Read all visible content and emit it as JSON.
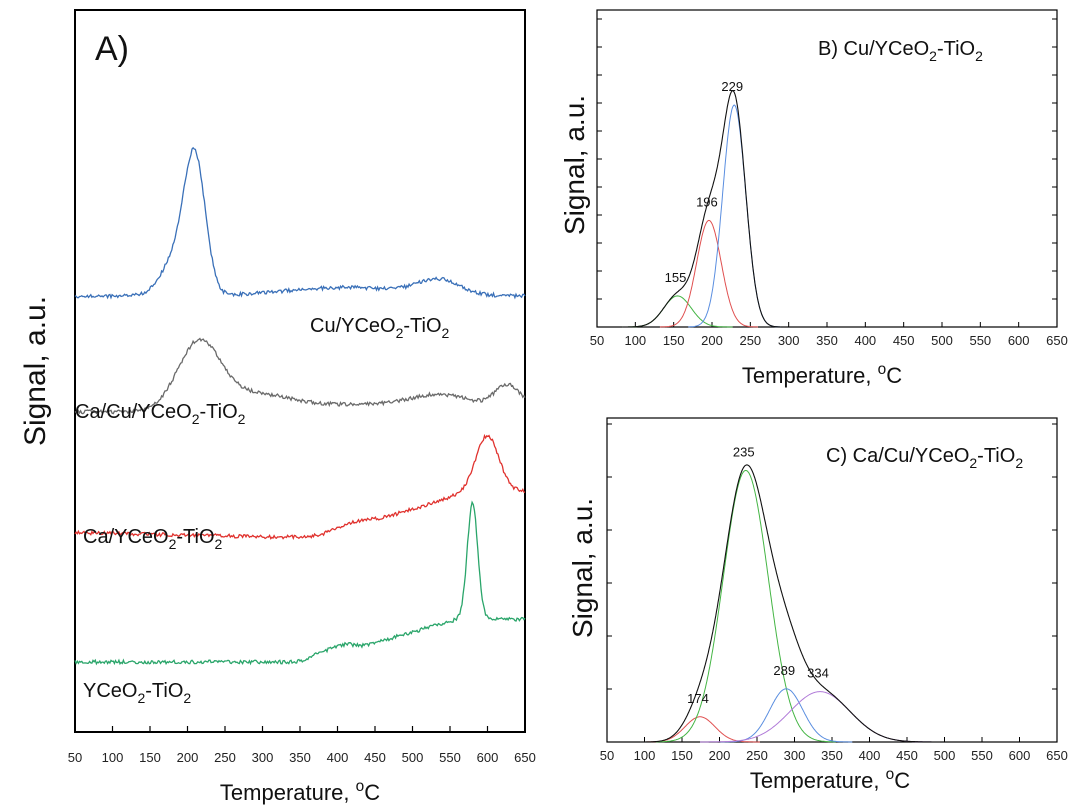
{
  "figure": {
    "colors": {
      "blue": "#3a70b8",
      "gray": "#6a6a6a",
      "red": "#e0322e",
      "green": "#2aa56a",
      "black": "#000000",
      "fit_green": "#44b544",
      "fit_red": "#e05050",
      "fit_blue": "#5a8ee0",
      "fit_purple": "#b07ad8"
    }
  },
  "chart_data": [
    {
      "panel": "A",
      "type": "line",
      "label": "A)",
      "xlabel": "Temperature, °C",
      "xlabel_parts": {
        "main": "Temperature, ",
        "sup": "o",
        "unit": "C"
      },
      "ylabel": "Signal, a.u.",
      "xlim": [
        50,
        650
      ],
      "xticks": [
        "50",
        "100",
        "150",
        "200",
        "250",
        "300",
        "350",
        "400",
        "450",
        "500",
        "550",
        "600",
        "650"
      ],
      "ytick_labels": false,
      "series": [
        {
          "name": "Cu/YCeO2-TiO2",
          "label_parts": [
            "Cu/YCeO",
            "2",
            "-TiO",
            "2"
          ],
          "color": "blue",
          "offset": 3.0,
          "baseline": [
            0.0,
            0.0
          ],
          "peaks": [
            [
              185,
              20,
              0.3
            ],
            [
              210,
              14,
              1.06
            ],
            [
              410,
              80,
              0.07
            ],
            [
              535,
              28,
              0.12
            ]
          ]
        },
        {
          "name": "Ca/Cu/YCeO2-TiO2",
          "label_parts": [
            "Ca/Cu/YCeO",
            "2",
            "-TiO",
            "2"
          ],
          "color": "gray",
          "offset": 2.05,
          "baseline": [
            0.0,
            0.0
          ],
          "peaks": [
            [
              215,
              28,
              0.54
            ],
            [
              285,
              50,
              0.13
            ],
            [
              450,
              110,
              0.06
            ],
            [
              540,
              40,
              0.1
            ],
            [
              628,
              18,
              0.2
            ]
          ]
        },
        {
          "name": "Ca/YCeO2-TiO2",
          "label_parts": [
            "Ca/YCeO",
            "2",
            "-TiO",
            "2"
          ],
          "color": "red",
          "offset": 1.06,
          "baseline": [
            0.0,
            -0.08
          ],
          "ramp": [
            [
              380,
              580,
              0.42
            ]
          ],
          "peaks": [
            [
              410,
              30,
              0.05
            ],
            [
              600,
              15,
              0.45
            ]
          ]
        },
        {
          "name": "YCeO2-TiO2",
          "label_parts": [
            "YCeO",
            "2",
            "-TiO",
            "2"
          ],
          "color": "green",
          "offset": 0.0,
          "baseline": [
            0.0,
            0.0
          ],
          "ramp": [
            [
              360,
              560,
              0.35
            ]
          ],
          "peaks": [
            [
              380,
              15,
              0.05
            ],
            [
              410,
              12,
              0.05
            ],
            [
              580,
              7,
              0.95
            ]
          ]
        }
      ]
    },
    {
      "panel": "B",
      "type": "line",
      "label_parts": [
        "B) Cu/YCeO",
        "2",
        "-TiO",
        "2"
      ],
      "xlabel": "Temperature, °C",
      "xlabel_parts": {
        "main": "Temperature, ",
        "sup": "o",
        "unit": "C"
      },
      "ylabel": "Signal, a.u.",
      "xlim": [
        50,
        650
      ],
      "xticks": [
        "50",
        "100",
        "150",
        "200",
        "250",
        "300",
        "350",
        "400",
        "450",
        "500",
        "550",
        "600",
        "650"
      ],
      "ytick_labels": false,
      "components": [
        {
          "center": 155,
          "width": 18,
          "height": 0.14,
          "color": "fit_green"
        },
        {
          "center": 196,
          "width": 16,
          "height": 0.48,
          "color": "fit_red"
        },
        {
          "center": 229,
          "width": 15,
          "height": 1.0,
          "color": "fit_blue"
        }
      ],
      "peak_labels": [
        "155",
        "196",
        "229"
      ]
    },
    {
      "panel": "C",
      "type": "line",
      "label_parts": [
        "C) Ca/Cu/YCeO",
        "2",
        "-TiO",
        "2"
      ],
      "xlabel": "Temperature, °C",
      "xlabel_parts": {
        "main": "Temperature, ",
        "sup": "o",
        "unit": "C"
      },
      "ylabel": "Signal, a.u.",
      "xlim": [
        50,
        650
      ],
      "xticks": [
        "50",
        "100",
        "150",
        "200",
        "250",
        "300",
        "350",
        "400",
        "450",
        "500",
        "550",
        "600",
        "650"
      ],
      "ytick_labels": false,
      "components": [
        {
          "center": 174,
          "width": 20,
          "height": 0.09,
          "color": "fit_red"
        },
        {
          "center": 235,
          "width": 30,
          "height": 0.97,
          "color": "fit_green"
        },
        {
          "center": 289,
          "width": 22,
          "height": 0.19,
          "color": "fit_blue"
        },
        {
          "center": 334,
          "width": 40,
          "height": 0.18,
          "color": "fit_purple"
        }
      ],
      "peak_labels": [
        "174",
        "235",
        "289",
        "334"
      ]
    }
  ]
}
